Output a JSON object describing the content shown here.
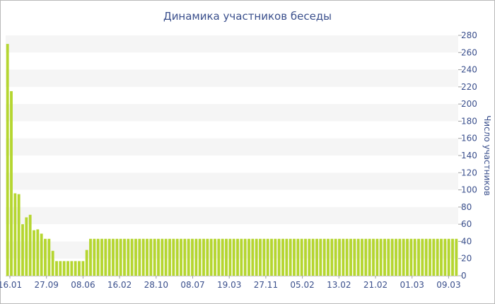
{
  "chart_data": {
    "type": "bar",
    "title": "Динамика участников беседы",
    "xlabel": "",
    "ylabel": "Число участников",
    "ylim": [
      0,
      280
    ],
    "yticks": [
      0,
      20,
      40,
      60,
      80,
      100,
      120,
      140,
      160,
      180,
      200,
      220,
      240,
      260,
      280
    ],
    "grid": "alternating horizontal bands",
    "bar_color": "#b5d630",
    "axis_text_color": "#3a4f8c",
    "y_axis_side": "right",
    "x_tick_labels": [
      "16.01",
      "27.09",
      "08.06",
      "16.02",
      "28.10",
      "08.07",
      "19.03",
      "27.11",
      "05.02",
      "13.02",
      "21.02",
      "01.03",
      "09.03"
    ],
    "values": [
      270,
      215,
      96,
      95,
      60,
      68,
      71,
      53,
      54,
      49,
      43,
      43,
      29,
      17,
      17,
      17,
      17,
      17,
      17,
      17,
      17,
      30,
      43,
      43,
      43,
      43,
      43,
      43,
      43,
      43,
      43,
      43,
      43,
      43,
      43,
      43,
      43,
      43,
      43,
      43,
      43,
      43,
      43,
      43,
      43,
      43,
      43,
      43,
      43,
      43,
      43,
      43,
      43,
      43,
      43,
      43,
      43,
      43,
      43,
      43,
      43,
      43,
      43,
      43,
      43,
      43,
      43,
      43,
      43,
      43,
      43,
      43,
      43,
      43,
      43,
      43,
      43,
      43,
      43,
      43,
      43,
      43,
      43,
      43,
      43,
      43,
      43,
      43,
      43,
      43,
      43,
      43,
      43,
      43,
      43,
      43,
      43,
      43,
      43,
      43,
      43,
      43,
      43,
      43,
      43,
      43,
      43,
      43,
      43,
      43,
      43,
      43,
      43,
      43,
      43,
      43,
      43,
      43,
      43,
      43
    ]
  }
}
